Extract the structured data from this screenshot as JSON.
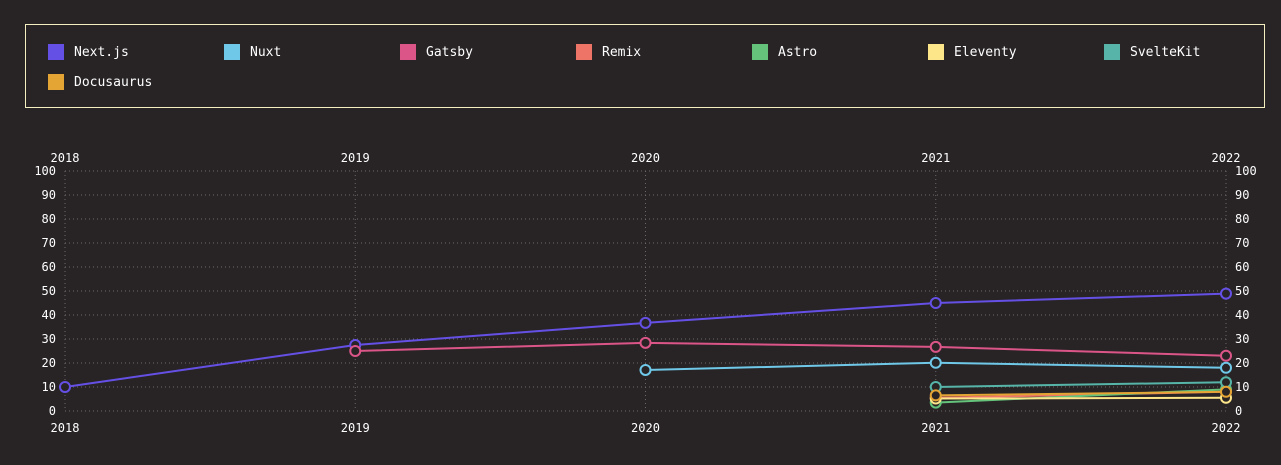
{
  "chart_data": {
    "type": "line",
    "x": [
      "2018",
      "2019",
      "2020",
      "2021",
      "2022"
    ],
    "ylim": [
      0,
      100
    ],
    "yticks": [
      0,
      10,
      20,
      30,
      40,
      50,
      60,
      70,
      80,
      90,
      100
    ],
    "grid": true,
    "legend_position": "top",
    "series": [
      {
        "name": "Next.js",
        "color": "#6550e6",
        "values": [
          10,
          27.5,
          36.7,
          45,
          48.9
        ]
      },
      {
        "name": "Nuxt",
        "color": "#6fc8e8",
        "values": [
          null,
          null,
          17.1,
          20.1,
          18
        ]
      },
      {
        "name": "Gatsby",
        "color": "#dc5588",
        "values": [
          null,
          25,
          28.4,
          26.7,
          23
        ]
      },
      {
        "name": "Remix",
        "color": "#ef7468",
        "values": [
          null,
          null,
          null,
          5.5,
          8
        ]
      },
      {
        "name": "Astro",
        "color": "#64c27a",
        "values": [
          null,
          null,
          null,
          3.5,
          9
        ]
      },
      {
        "name": "Eleventy",
        "color": "#fde68a",
        "values": [
          null,
          null,
          null,
          5.2,
          5.5
        ]
      },
      {
        "name": "SvelteKit",
        "color": "#56b5a8",
        "values": [
          null,
          null,
          null,
          10,
          12
        ]
      },
      {
        "name": "Docusaurus",
        "color": "#e5a535",
        "values": [
          null,
          null,
          null,
          6.5,
          8
        ]
      }
    ]
  }
}
